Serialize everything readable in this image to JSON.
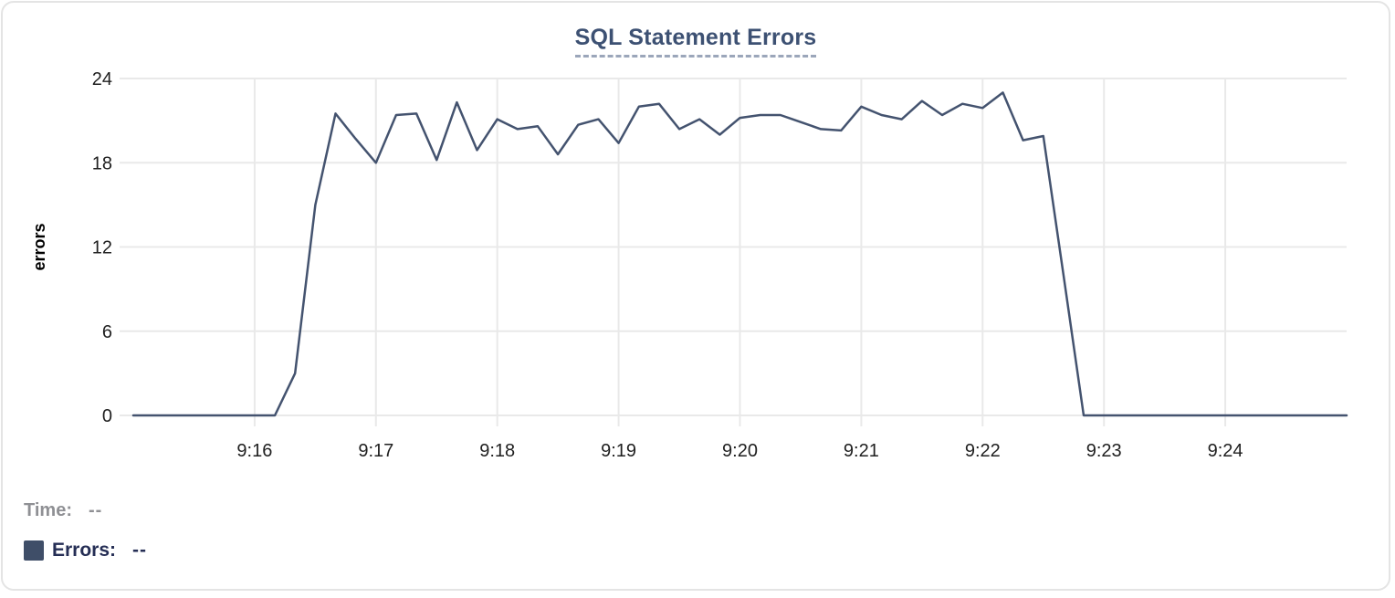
{
  "panel": {
    "title": "SQL Statement Errors"
  },
  "colors": {
    "line": "#44536f",
    "grid": "#e9e9e9",
    "tick": "#dcdcdc",
    "tick_text": "#1f1f1f",
    "axis_title_text": "#000000",
    "title_text": "#3d5173",
    "title_underline": "#9ba6ba",
    "time_readout": "#8f9094",
    "errors_readout": "#252e55",
    "legend_swatch": "#3f4e68",
    "panel_border": "#e4e4e4"
  },
  "readout": {
    "time_label": "Time:",
    "time_value": "--",
    "errors_label": "Errors:",
    "errors_value": "--"
  },
  "chart_data": {
    "type": "line",
    "title": "SQL Statement Errors",
    "xlabel": "",
    "ylabel": "errors",
    "grid": true,
    "x_axis": {
      "start": "9:15:00",
      "end": "9:25:00",
      "tick_labels": [
        "9:16",
        "9:17",
        "9:18",
        "9:19",
        "9:20",
        "9:21",
        "9:22",
        "9:23",
        "9:24"
      ]
    },
    "y_axis": {
      "min": 0,
      "max": 24,
      "ticks": [
        0,
        6,
        12,
        18,
        24
      ]
    },
    "series": [
      {
        "name": "Errors",
        "color": "#44536f",
        "times": [
          "9:15:00",
          "9:15:10",
          "9:15:20",
          "9:15:30",
          "9:15:40",
          "9:15:50",
          "9:16:00",
          "9:16:10",
          "9:16:20",
          "9:16:30",
          "9:16:40",
          "9:16:50",
          "9:17:00",
          "9:17:10",
          "9:17:20",
          "9:17:30",
          "9:17:40",
          "9:17:50",
          "9:18:00",
          "9:18:10",
          "9:18:20",
          "9:18:30",
          "9:18:40",
          "9:18:50",
          "9:19:00",
          "9:19:10",
          "9:19:20",
          "9:19:30",
          "9:19:40",
          "9:19:50",
          "9:20:00",
          "9:20:10",
          "9:20:20",
          "9:20:30",
          "9:20:40",
          "9:20:50",
          "9:21:00",
          "9:21:10",
          "9:21:20",
          "9:21:30",
          "9:21:40",
          "9:21:50",
          "9:22:00",
          "9:22:10",
          "9:22:20",
          "9:22:30",
          "9:22:40",
          "9:22:50",
          "9:23:00",
          "9:23:10",
          "9:23:20",
          "9:23:30",
          "9:23:40",
          "9:23:50",
          "9:24:00",
          "9:24:10",
          "9:24:20",
          "9:24:30",
          "9:24:40",
          "9:24:50",
          "9:25:00"
        ],
        "values": [
          0,
          0,
          0,
          0,
          0,
          0,
          0,
          0,
          3,
          15,
          21.5,
          19.7,
          18,
          21.4,
          21.5,
          18.2,
          22.3,
          18.9,
          21.1,
          20.4,
          20.6,
          18.6,
          20.7,
          21.1,
          19.4,
          22,
          22.2,
          20.4,
          21.1,
          20,
          21.2,
          21.4,
          21.4,
          20.9,
          20.4,
          20.3,
          22,
          21.4,
          21.1,
          22.4,
          21.4,
          22.2,
          21.9,
          23,
          19.6,
          19.9,
          10,
          0,
          0,
          0,
          0,
          0,
          0,
          0,
          0,
          0,
          0,
          0,
          0,
          0,
          0
        ]
      }
    ]
  }
}
